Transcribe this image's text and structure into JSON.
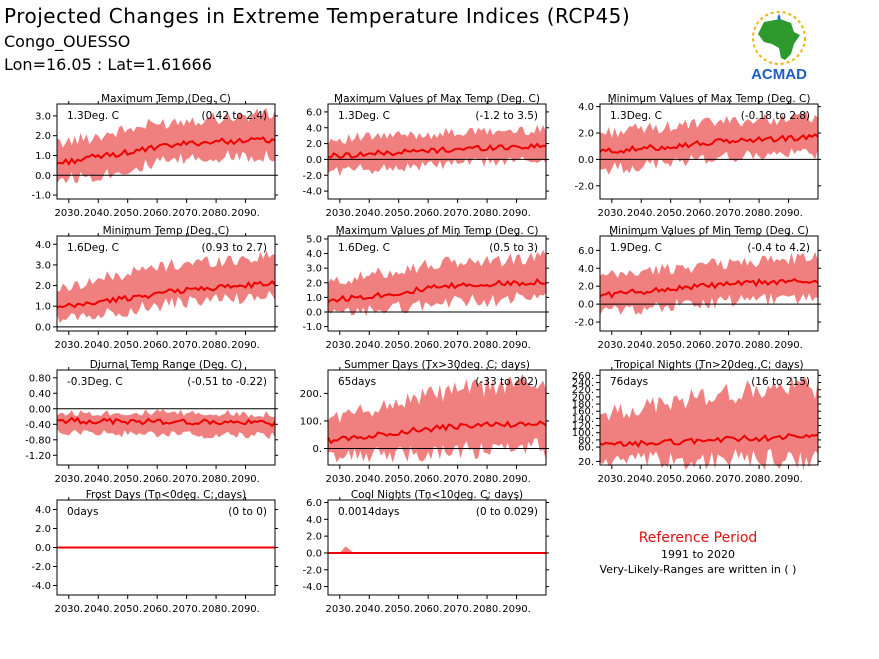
{
  "header": {
    "title": "Projected Changes in Extreme Temperature Indices (RCP45)",
    "subtitle": "Congo_OUESSO",
    "coords": "Lon=16.05 : Lat=1.61666"
  },
  "logo": {
    "text": "ACMAD",
    "icon": "africa-map-logo"
  },
  "reference": {
    "title": "Reference Period",
    "years": "1991 to 2020",
    "note": "Very-Likely-Ranges are written in ( )"
  },
  "colors": {
    "band": "#f08080",
    "line": "#ee0000",
    "zero": "#000000",
    "axis": "#000000",
    "ref_title": "#e01010"
  },
  "x_ticks": [
    "2030.",
    "2040.",
    "2050.",
    "2060.",
    "2070.",
    "2080.",
    "2090."
  ],
  "chart_data": [
    {
      "type": "line",
      "title": "Maximum Temp (Deg. C)",
      "change": "1.3Deg. C",
      "range": "(0.42 to 2.4)",
      "xlim": [
        2026,
        2100
      ],
      "ylim": [
        -1.2,
        3.6
      ],
      "yticks": [
        "-1.0",
        "0.0",
        "1.0",
        "2.0",
        "3.0"
      ],
      "ytick_values": [
        -1,
        0,
        1,
        2,
        3
      ],
      "mean": [
        [
          2026,
          0.6
        ],
        [
          2040,
          0.95
        ],
        [
          2050,
          1.15
        ],
        [
          2060,
          1.4
        ],
        [
          2070,
          1.6
        ],
        [
          2080,
          1.7
        ],
        [
          2090,
          1.75
        ],
        [
          2100,
          1.8
        ]
      ],
      "low": [
        [
          2026,
          -0.2
        ],
        [
          2040,
          0.0
        ],
        [
          2050,
          0.3
        ],
        [
          2060,
          0.6
        ],
        [
          2070,
          0.8
        ],
        [
          2080,
          0.9
        ],
        [
          2090,
          1.0
        ],
        [
          2100,
          1.0
        ]
      ],
      "high": [
        [
          2026,
          1.6
        ],
        [
          2040,
          2.0
        ],
        [
          2050,
          2.3
        ],
        [
          2060,
          2.6
        ],
        [
          2070,
          2.8
        ],
        [
          2080,
          2.9
        ],
        [
          2090,
          3.0
        ],
        [
          2100,
          3.1
        ]
      ]
    },
    {
      "type": "line",
      "title": "Maximum Values of Max Temp (Deg. C)",
      "change": "1.3Deg. C",
      "range": "(-1.2 to 3.5)",
      "xlim": [
        2026,
        2100
      ],
      "ylim": [
        -5,
        7
      ],
      "yticks": [
        "-4.0",
        "-2.0",
        "0.0",
        "2.0",
        "4.0",
        "6.0"
      ],
      "ytick_values": [
        -4,
        -2,
        0,
        2,
        4,
        6
      ],
      "mean": [
        [
          2026,
          0.4
        ],
        [
          2040,
          0.7
        ],
        [
          2050,
          0.9
        ],
        [
          2060,
          1.1
        ],
        [
          2070,
          1.3
        ],
        [
          2080,
          1.5
        ],
        [
          2090,
          1.6
        ],
        [
          2100,
          1.7
        ]
      ],
      "low": [
        [
          2026,
          -1.5
        ],
        [
          2040,
          -1.2
        ],
        [
          2050,
          -1.0
        ],
        [
          2060,
          -0.8
        ],
        [
          2070,
          -0.5
        ],
        [
          2080,
          -0.3
        ],
        [
          2090,
          -0.2
        ],
        [
          2100,
          0.0
        ]
      ],
      "high": [
        [
          2026,
          2.5
        ],
        [
          2040,
          2.8
        ],
        [
          2050,
          3.0
        ],
        [
          2060,
          3.2
        ],
        [
          2070,
          3.4
        ],
        [
          2080,
          3.5
        ],
        [
          2090,
          3.6
        ],
        [
          2100,
          3.8
        ]
      ]
    },
    {
      "type": "line",
      "title": "Minimum Values of Max Temp (Deg. C)",
      "change": "1.3Deg. C",
      "range": "(-0.18 to 2.8)",
      "xlim": [
        2026,
        2100
      ],
      "ylim": [
        -3,
        4.2
      ],
      "yticks": [
        "-2.0",
        "0.0",
        "2.0",
        "4.0"
      ],
      "ytick_values": [
        -2,
        0,
        2,
        4
      ],
      "mean": [
        [
          2026,
          0.6
        ],
        [
          2040,
          0.8
        ],
        [
          2050,
          1.0
        ],
        [
          2060,
          1.2
        ],
        [
          2070,
          1.4
        ],
        [
          2080,
          1.5
        ],
        [
          2090,
          1.6
        ],
        [
          2100,
          1.7
        ]
      ],
      "low": [
        [
          2026,
          -0.8
        ],
        [
          2040,
          -0.5
        ],
        [
          2050,
          -0.2
        ],
        [
          2060,
          0.0
        ],
        [
          2070,
          0.2
        ],
        [
          2080,
          0.3
        ],
        [
          2090,
          0.4
        ],
        [
          2100,
          0.5
        ]
      ],
      "high": [
        [
          2026,
          2.0
        ],
        [
          2040,
          2.3
        ],
        [
          2050,
          2.5
        ],
        [
          2060,
          2.7
        ],
        [
          2070,
          2.9
        ],
        [
          2080,
          3.0
        ],
        [
          2090,
          3.1
        ],
        [
          2100,
          3.3
        ]
      ]
    },
    {
      "type": "line",
      "title": "Minimum Temp (Deg. C)",
      "change": "1.6Deg. C",
      "range": "(0.93 to 2.7)",
      "xlim": [
        2026,
        2100
      ],
      "ylim": [
        -0.2,
        4.4
      ],
      "yticks": [
        "0.0",
        "1.0",
        "2.0",
        "3.0",
        "4.0"
      ],
      "ytick_values": [
        0,
        1,
        2,
        3,
        4
      ],
      "mean": [
        [
          2026,
          0.9
        ],
        [
          2040,
          1.2
        ],
        [
          2050,
          1.4
        ],
        [
          2060,
          1.6
        ],
        [
          2070,
          1.8
        ],
        [
          2080,
          1.9
        ],
        [
          2090,
          2.0
        ],
        [
          2100,
          2.1
        ]
      ],
      "low": [
        [
          2026,
          0.4
        ],
        [
          2040,
          0.6
        ],
        [
          2050,
          0.8
        ],
        [
          2060,
          1.0
        ],
        [
          2070,
          1.2
        ],
        [
          2080,
          1.3
        ],
        [
          2090,
          1.4
        ],
        [
          2100,
          1.5
        ]
      ],
      "high": [
        [
          2026,
          1.8
        ],
        [
          2040,
          2.3
        ],
        [
          2050,
          2.6
        ],
        [
          2060,
          2.9
        ],
        [
          2070,
          3.1
        ],
        [
          2080,
          3.2
        ],
        [
          2090,
          3.3
        ],
        [
          2100,
          3.5
        ]
      ]
    },
    {
      "type": "line",
      "title": "Maximum Values of Min Temp (Deg. C)",
      "change": "1.6Deg. C",
      "range": "(0.5 to 3)",
      "xlim": [
        2026,
        2100
      ],
      "ylim": [
        -1.3,
        5.2
      ],
      "yticks": [
        "-1.0",
        "0.0",
        "1.0",
        "2.0",
        "3.0",
        "4.0",
        "5.0"
      ],
      "ytick_values": [
        -1,
        0,
        1,
        2,
        3,
        4,
        5
      ],
      "mean": [
        [
          2026,
          0.8
        ],
        [
          2040,
          1.1
        ],
        [
          2050,
          1.3
        ],
        [
          2060,
          1.6
        ],
        [
          2070,
          1.8
        ],
        [
          2080,
          1.9
        ],
        [
          2090,
          2.0
        ],
        [
          2100,
          2.1
        ]
      ],
      "low": [
        [
          2026,
          -0.2
        ],
        [
          2040,
          0.1
        ],
        [
          2050,
          0.3
        ],
        [
          2060,
          0.5
        ],
        [
          2070,
          0.7
        ],
        [
          2080,
          0.8
        ],
        [
          2090,
          0.9
        ],
        [
          2100,
          1.0
        ]
      ],
      "high": [
        [
          2026,
          2.0
        ],
        [
          2040,
          2.5
        ],
        [
          2050,
          2.9
        ],
        [
          2060,
          3.2
        ],
        [
          2070,
          3.4
        ],
        [
          2080,
          3.5
        ],
        [
          2090,
          3.6
        ],
        [
          2100,
          3.8
        ]
      ]
    },
    {
      "type": "line",
      "title": "Minimum Values of Min Temp (Deg. C)",
      "change": "1.9Deg. C",
      "range": "(-0.4 to 4.2)",
      "xlim": [
        2026,
        2100
      ],
      "ylim": [
        -3,
        7.6
      ],
      "yticks": [
        "-2.0",
        "0.0",
        "2.0",
        "4.0",
        "6.0"
      ],
      "ytick_values": [
        -2,
        0,
        2,
        4,
        6
      ],
      "mean": [
        [
          2026,
          1.0
        ],
        [
          2040,
          1.4
        ],
        [
          2050,
          1.7
        ],
        [
          2060,
          2.0
        ],
        [
          2070,
          2.2
        ],
        [
          2080,
          2.4
        ],
        [
          2090,
          2.5
        ],
        [
          2100,
          2.6
        ]
      ],
      "low": [
        [
          2026,
          -0.8
        ],
        [
          2040,
          -0.5
        ],
        [
          2050,
          -0.2
        ],
        [
          2060,
          0.0
        ],
        [
          2070,
          0.3
        ],
        [
          2080,
          0.5
        ],
        [
          2090,
          0.6
        ],
        [
          2100,
          0.7
        ]
      ],
      "high": [
        [
          2026,
          3.0
        ],
        [
          2040,
          3.6
        ],
        [
          2050,
          4.0
        ],
        [
          2060,
          4.3
        ],
        [
          2070,
          4.6
        ],
        [
          2080,
          4.8
        ],
        [
          2090,
          5.0
        ],
        [
          2100,
          5.2
        ]
      ]
    },
    {
      "type": "line",
      "title": "Diurnal Temp Range (Deg. C)",
      "change": "-0.3Deg. C",
      "range": "(-0.51 to -0.22)",
      "xlim": [
        2026,
        2100
      ],
      "ylim": [
        -1.45,
        1.0
      ],
      "yticks": [
        "-1.20",
        "-0.80",
        "-0.40",
        "0.00",
        "0.40",
        "0.80"
      ],
      "ytick_values": [
        -1.2,
        -0.8,
        -0.4,
        0,
        0.4,
        0.8
      ],
      "mean": [
        [
          2026,
          -0.3
        ],
        [
          2040,
          -0.32
        ],
        [
          2050,
          -0.33
        ],
        [
          2060,
          -0.33
        ],
        [
          2070,
          -0.34
        ],
        [
          2080,
          -0.35
        ],
        [
          2090,
          -0.36
        ],
        [
          2100,
          -0.37
        ]
      ],
      "low": [
        [
          2026,
          -0.6
        ],
        [
          2040,
          -0.62
        ],
        [
          2050,
          -0.65
        ],
        [
          2060,
          -0.66
        ],
        [
          2070,
          -0.67
        ],
        [
          2080,
          -0.68
        ],
        [
          2090,
          -0.68
        ],
        [
          2100,
          -0.7
        ]
      ],
      "high": [
        [
          2026,
          -0.12
        ],
        [
          2040,
          -0.1
        ],
        [
          2050,
          -0.1
        ],
        [
          2060,
          -0.1
        ],
        [
          2070,
          -0.12
        ],
        [
          2080,
          -0.12
        ],
        [
          2090,
          -0.13
        ],
        [
          2100,
          -0.13
        ]
      ]
    },
    {
      "type": "line",
      "title": "Summer Days (Tx>30deg. C; days)",
      "change": "65days",
      "range": "(-33 to 202)",
      "xlim": [
        2026,
        2100
      ],
      "ylim": [
        -60,
        285
      ],
      "yticks": [
        "0.",
        "100.",
        "200."
      ],
      "ytick_values": [
        0,
        100,
        200
      ],
      "mean": [
        [
          2026,
          30
        ],
        [
          2040,
          45
        ],
        [
          2050,
          60
        ],
        [
          2060,
          70
        ],
        [
          2070,
          80
        ],
        [
          2080,
          85
        ],
        [
          2090,
          88
        ],
        [
          2100,
          90
        ]
      ],
      "low": [
        [
          2026,
          -30
        ],
        [
          2040,
          -25
        ],
        [
          2050,
          -20
        ],
        [
          2060,
          -15
        ],
        [
          2070,
          -10
        ],
        [
          2080,
          -8
        ],
        [
          2090,
          -5
        ],
        [
          2100,
          -5
        ]
      ],
      "high": [
        [
          2026,
          110
        ],
        [
          2040,
          140
        ],
        [
          2050,
          170
        ],
        [
          2060,
          195
        ],
        [
          2070,
          210
        ],
        [
          2080,
          225
        ],
        [
          2090,
          235
        ],
        [
          2100,
          245
        ]
      ]
    },
    {
      "type": "line",
      "title": "Tropical Nights (Tn>20deg. C; days)",
      "change": "76days",
      "range": "(16 to 215)",
      "xlim": [
        2026,
        2100
      ],
      "ylim": [
        10,
        275
      ],
      "yticks": [
        "20.",
        "60.",
        "80.",
        "100.",
        "120.",
        "140.",
        "160.",
        "180.",
        "200.",
        "220.",
        "240.",
        "260."
      ],
      "ytick_values": [
        20,
        60,
        80,
        100,
        120,
        140,
        160,
        180,
        200,
        220,
        240,
        260
      ],
      "mean": [
        [
          2026,
          65
        ],
        [
          2040,
          70
        ],
        [
          2050,
          74
        ],
        [
          2060,
          78
        ],
        [
          2070,
          82
        ],
        [
          2080,
          85
        ],
        [
          2090,
          88
        ],
        [
          2100,
          90
        ]
      ],
      "low": [
        [
          2026,
          20
        ],
        [
          2040,
          20
        ],
        [
          2050,
          22
        ],
        [
          2060,
          22
        ],
        [
          2070,
          23
        ],
        [
          2080,
          24
        ],
        [
          2090,
          25
        ],
        [
          2100,
          25
        ]
      ],
      "high": [
        [
          2026,
          150
        ],
        [
          2040,
          170
        ],
        [
          2050,
          185
        ],
        [
          2060,
          200
        ],
        [
          2070,
          210
        ],
        [
          2080,
          218
        ],
        [
          2090,
          225
        ],
        [
          2100,
          230
        ]
      ]
    },
    {
      "type": "line",
      "title": "Frost Days (Tn<0deg. C; days)",
      "change": "0days",
      "range": "(0 to 0)",
      "xlim": [
        2026,
        2100
      ],
      "ylim": [
        -5,
        5
      ],
      "yticks": [
        "-4.0",
        "-2.0",
        "0.0",
        "2.0",
        "4.0"
      ],
      "ytick_values": [
        -4,
        -2,
        0,
        2,
        4
      ],
      "mean": [
        [
          2026,
          0
        ],
        [
          2100,
          0
        ]
      ],
      "low": [
        [
          2026,
          0
        ],
        [
          2100,
          0
        ]
      ],
      "high": [
        [
          2026,
          0
        ],
        [
          2100,
          0
        ]
      ]
    },
    {
      "type": "line",
      "title": "Cool Nights (Tn<10deg. C; days)",
      "change": "0.0014days",
      "range": "(0 to 0.029)",
      "xlim": [
        2026,
        2100
      ],
      "ylim": [
        -5,
        6.3
      ],
      "yticks": [
        "-4.0",
        "-2.0",
        "0.0",
        "2.0",
        "4.0",
        "6.0"
      ],
      "ytick_values": [
        -4,
        -2,
        0,
        2,
        4,
        6
      ],
      "mean": [
        [
          2026,
          0
        ],
        [
          2100,
          0
        ]
      ],
      "low": [
        [
          2026,
          0
        ],
        [
          2100,
          0
        ]
      ],
      "high": [
        [
          2026,
          0
        ],
        [
          2030,
          0
        ],
        [
          2032,
          0.8
        ],
        [
          2034,
          0.2
        ],
        [
          2035,
          0
        ],
        [
          2100,
          0
        ]
      ]
    }
  ]
}
